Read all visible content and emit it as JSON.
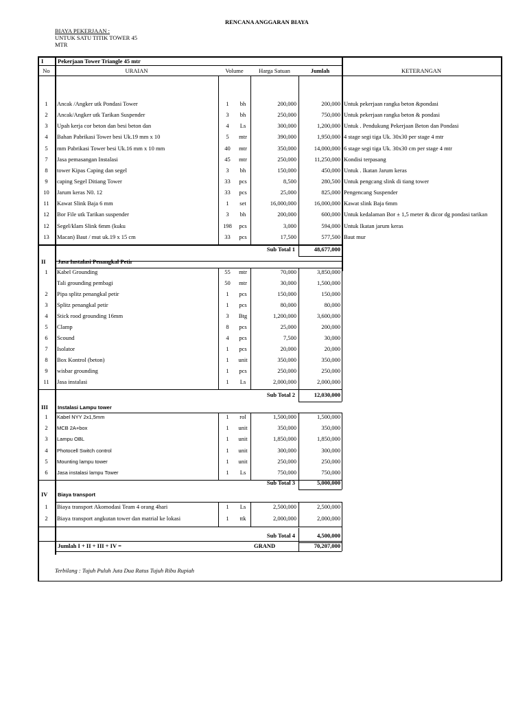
{
  "title": "RENCANA ANGGARAN BIAYA",
  "subtitle_label": "BIAYA PEKERJAAN :",
  "subtitle_line1": "UNTUK SATU TITIK TOWER  45",
  "subtitle_line2": "MTR",
  "headers": {
    "no": "No",
    "uraian": "URAIAN",
    "volume": "Volume",
    "harga": "Harga Satuan",
    "jumlah": "Jumlah",
    "keterangan": "KETERANGAN"
  },
  "sections": [
    {
      "roman": "I",
      "title": "Pekerjaan Tower Triangle 45 mtr",
      "subtotal_label": "Sub Total 1",
      "subtotal": "48,677,000",
      "items": [
        {
          "no": "1",
          "desc": "Ancak /Angker utk Pondasi Tower",
          "qty": "1",
          "unit": "bh",
          "price": "200,000",
          "total": "200,000",
          "note": "Untuk pekerjaan rangka beton &pondasi"
        },
        {
          "no": "2",
          "desc": "Ancak/Angker utk Tarikan Suspender",
          "qty": "3",
          "unit": "bh",
          "price": "250,000",
          "total": "750,000",
          "note": "Untuk pekerjaan rangka beton & pondasi"
        },
        {
          "no": "3",
          "desc": "Upah kerja cor beton dan besi beton dan",
          "qty": "4",
          "unit": "Ls",
          "price": "300,000",
          "total": "1,200,000",
          "note": "Untuk . Pendukung Pekerjaan Beton dan Pondasi"
        },
        {
          "no": "4",
          "desc": "Bahan Pabrikasi Tower besi Uk.19 mm x 10",
          "qty": "5",
          "unit": "mtr",
          "price": "390,000",
          "total": "1,950,000",
          "note": " 4 stage segi tiga Uk. 30x30 per stage 4 mtr"
        },
        {
          "no": "5",
          "desc": "mm Pabrikasi Tower besi Uk.16 mm x 10 mm",
          "qty": "40",
          "unit": "mtr",
          "price": "350,000",
          "total": "14,000,000",
          "note": " 6 stage segi tiga Uk. 30x30 cm per stage 4 mtr"
        },
        {
          "no": "7",
          "desc": "Jasa pemasangan Instalasi",
          "qty": "45",
          "unit": "mtr",
          "price": "250,000",
          "total": "11,250,000",
          "note": "Kondisi terpasang"
        },
        {
          "no": "8",
          "desc": "tower Kipas Caping dan segel",
          "qty": "3",
          "unit": "bh",
          "price": "150,000",
          "total": "450,000",
          "note": "Untuk . Ikatan Jarum keras"
        },
        {
          "no": "9",
          "desc": "caping Segel Ditiang Tower",
          "qty": "33",
          "unit": "pcs",
          "price": "8,500",
          "total": "280,500",
          "note": "Untuk pengcang slink di tiang tower"
        },
        {
          "no": "10",
          "desc": "Jarum keras N0. 12",
          "qty": "33",
          "unit": "pcs",
          "price": "25,000",
          "total": "825,000",
          "note": "Pengencang Suspender"
        },
        {
          "no": "11",
          "desc": "Kawat Slink Baja 6 mm",
          "qty": "1",
          "unit": "set",
          "price": "16,000,000",
          "total": "16,000,000",
          "note": "Kawat slink Baja 6mm"
        },
        {
          "no": "12",
          "desc": "Bor File utk Tarikan suspender",
          "qty": "3",
          "unit": "bh",
          "price": "200,000",
          "total": "600,000",
          "note": "Untuk kedalaman Bor ± 1,5 meter & dicor dg pondasi tarikan"
        },
        {
          "no": "12",
          "desc": "Segel/klam Slink 6mm (kuku",
          "qty": "198",
          "unit": "pcs",
          "price": "3,000",
          "total": "594,000",
          "note": "Untuk Ikatan jarum keras"
        },
        {
          "no": "13",
          "desc": "Macan) Baut / mut uk.19 x 15 cm",
          "qty": "33",
          "unit": "pcs",
          "price": "17,500",
          "total": "577,500",
          "note": "Baut mur"
        }
      ]
    },
    {
      "roman": "II",
      "title": "Jasa Instalasi Penangkal Petir",
      "subtotal_label": "Sub Total 2",
      "subtotal": "12,030,000",
      "items": [
        {
          "no": "1",
          "desc": "Kabel Grounding",
          "qty": "55",
          "unit": "mtr",
          "price": "70,000",
          "total": "3,850,000"
        },
        {
          "no": "",
          "desc": "Tali grounding pembagi",
          "qty": "50",
          "unit": "mtr",
          "price": "30,000",
          "total": "1,500,000"
        },
        {
          "no": "2",
          "desc": "Pipa splitz penangkal petir",
          "qty": "1",
          "unit": "pcs",
          "price": "150,000",
          "total": "150,000"
        },
        {
          "no": "3",
          "desc": "Splitz penangkal petir",
          "qty": "1",
          "unit": "pcs",
          "price": "80,000",
          "total": "80,000"
        },
        {
          "no": "4",
          "desc": "Stick rood  grounding 16mm",
          "qty": "3",
          "unit": "Btg",
          "price": "1,200,000",
          "total": "3,600,000"
        },
        {
          "no": "5",
          "desc": "Clamp",
          "qty": "8",
          "unit": "pcs",
          "price": "25,000",
          "total": "200,000"
        },
        {
          "no": "6",
          "desc": "Scound",
          "qty": "4",
          "unit": "pcs",
          "price": "7,500",
          "total": "30,000"
        },
        {
          "no": "7",
          "desc": "Isolator",
          "qty": "1",
          "unit": "pcs",
          "price": "20,000",
          "total": "20,000"
        },
        {
          "no": "8",
          "desc": "Box Kontrol (beton)",
          "qty": "1",
          "unit": "unit",
          "price": "350,000",
          "total": "350,000"
        },
        {
          "no": "9",
          "desc": "wisbar grounding",
          "qty": "1",
          "unit": "pcs",
          "price": "250,000",
          "total": "250,000"
        },
        {
          "no": "11",
          "desc": "Jasa instalasi",
          "qty": "1",
          "unit": "Ls",
          "price": "2,000,000",
          "total": "2,000,000"
        }
      ]
    },
    {
      "roman": "III",
      "title": "Instalasi Lampu tower",
      "subtotal_label": "Sub Total 3",
      "subtotal": "5,000,000",
      "items": [
        {
          "no": "1",
          "desc": "Kabel NYY 2x1,5mm",
          "qty": "1",
          "unit": "rol",
          "price": "1,500,000",
          "total": "1,500,000"
        },
        {
          "no": "2",
          "desc": "MCB 2A+box",
          "qty": "1",
          "unit": "unit",
          "price": "350,000",
          "total": "350,000"
        },
        {
          "no": "3",
          "desc": "Lampu OBL",
          "qty": "1",
          "unit": "unit",
          "price": "1,850,000",
          "total": "1,850,000"
        },
        {
          "no": "4",
          "desc": " Photocell Switch control",
          "qty": "1",
          "unit": "unit",
          "price": "300,000",
          "total": "300,000"
        },
        {
          "no": "5",
          "desc": "Mounting lampu tower",
          "qty": "1",
          "unit": "unit",
          "price": "250,000",
          "total": "250,000"
        },
        {
          "no": "6",
          "desc": "Jasa instalasi lampu Tower",
          "qty": "1",
          "unit": "Ls",
          "price": "750,000",
          "total": "750,000"
        }
      ]
    },
    {
      "roman": "IV",
      "title": "Biaya transport",
      "subtotal_label": "Sub Total 4",
      "subtotal": "4,500,000",
      "items": [
        {
          "no": "1",
          "desc": "Biaya transport Akomodasi Team 4 orang 4hari",
          "qty": "1",
          "unit": "Ls",
          "price": "2,500,000",
          "total": "2,500,000"
        },
        {
          "no": "2",
          "desc": "Biaya transport angkutan tower dan matrial ke lokasi",
          "qty": "1",
          "unit": "ttk",
          "price": "2,000,000",
          "total": "2,000,000"
        }
      ]
    }
  ],
  "grand": {
    "label": "Jumlah I + II + III + IV =",
    "grand_label": "GRAND",
    "value": "70,207,000"
  },
  "terbilang": "Terbilang : Tujuh Puluh Juta Dua Ratus Tujuh Ribu Rupiah"
}
